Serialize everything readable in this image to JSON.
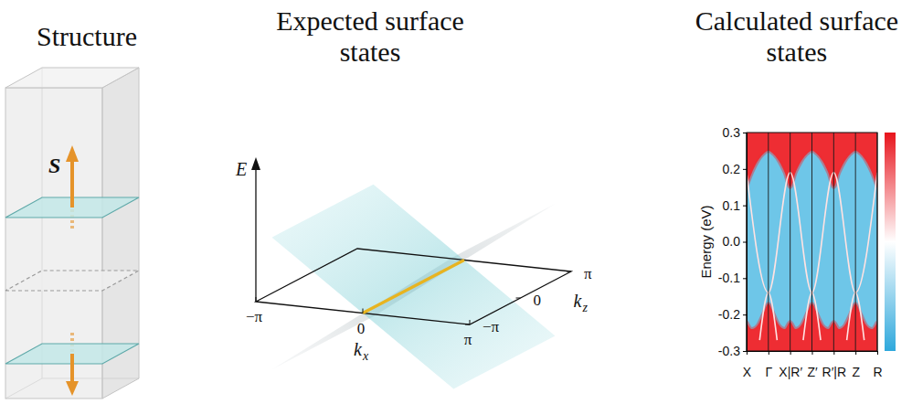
{
  "structure": {
    "title": "Structure",
    "spin_label": "S"
  },
  "expected": {
    "title": "Expected surface states",
    "energy_label": "E",
    "kx_label": "k",
    "kx_subscript": "x",
    "kz_label": "k",
    "kz_subscript": "z",
    "kx_ticks": [
      {
        "value": -1,
        "label": "−π"
      },
      0,
      {
        "value": 1,
        "label": "π"
      }
    ],
    "kz_ticks": [
      {
        "value": -1,
        "label": "−π"
      },
      0,
      {
        "value": 1,
        "label": "π"
      }
    ]
  },
  "chart_data": {
    "type": "line",
    "title": "Calculated surface states",
    "ylabel": "Energy (eV)",
    "xlim": [
      0,
      6
    ],
    "xticks": [
      {
        "value": 0,
        "label": "X"
      },
      {
        "value": 1,
        "label": "Γ"
      },
      {
        "value": 2,
        "label": "X|R′"
      },
      {
        "value": 3,
        "label": "Z′"
      },
      {
        "value": 4,
        "label": "R′|R"
      },
      {
        "value": 5,
        "label": "Z"
      },
      {
        "value": 6,
        "label": "R"
      }
    ],
    "ylim": [
      -0.3,
      0.3
    ],
    "yticks": [
      -0.3,
      -0.2,
      -0.1,
      {
        "value": 0,
        "label": "0.0"
      },
      0.1,
      0.2,
      0.3
    ],
    "grid": "x",
    "colorbar": {
      "colors": [
        "#e8141c",
        "#ffffff",
        "#2ea8dc"
      ]
    },
    "series": [
      {
        "type": "area",
        "color": "#ee2d33",
        "x": [
          0,
          0.25,
          0.5,
          0.75,
          1,
          1.25,
          1.5,
          1.75,
          2,
          2.25,
          2.5,
          2.75,
          3,
          3.25,
          3.5,
          3.75,
          4,
          4.25,
          4.5,
          4.75,
          5,
          5.25,
          5.5,
          5.75,
          6
        ],
        "low": [
          0.15,
          0.19,
          0.22,
          0.24,
          0.25,
          0.24,
          0.22,
          0.19,
          0.15,
          0.19,
          0.22,
          0.24,
          0.25,
          0.24,
          0.22,
          0.19,
          0.15,
          0.19,
          0.22,
          0.24,
          0.25,
          0.24,
          0.22,
          0.19,
          0.15
        ],
        "high": [
          0.3,
          0.3,
          0.3,
          0.3,
          0.3,
          0.3,
          0.3,
          0.3,
          0.3,
          0.3,
          0.3,
          0.3,
          0.3,
          0.3,
          0.3,
          0.3,
          0.3,
          0.3,
          0.3,
          0.3,
          0.3,
          0.3,
          0.3,
          0.3,
          0.3
        ]
      },
      {
        "type": "area",
        "color": "#ee2d33",
        "x": [
          0,
          0.25,
          0.5,
          0.75,
          1,
          1.25,
          1.5,
          1.75,
          2,
          2.25,
          2.5,
          2.75,
          3,
          3.25,
          3.5,
          3.75,
          4,
          4.25,
          4.5,
          4.75,
          5,
          5.25,
          5.5,
          5.75,
          6
        ],
        "low": [
          -0.3,
          -0.3,
          -0.3,
          -0.3,
          -0.3,
          -0.3,
          -0.3,
          -0.3,
          -0.3,
          -0.3,
          -0.3,
          -0.3,
          -0.3,
          -0.3,
          -0.3,
          -0.3,
          -0.3,
          -0.3,
          -0.3,
          -0.3,
          -0.3,
          -0.3,
          -0.3,
          -0.3,
          -0.3
        ],
        "high": [
          -0.22,
          -0.24,
          -0.23,
          -0.2,
          -0.17,
          -0.2,
          -0.23,
          -0.24,
          -0.22,
          -0.24,
          -0.23,
          -0.2,
          -0.17,
          -0.2,
          -0.23,
          -0.24,
          -0.22,
          -0.24,
          -0.23,
          -0.2,
          -0.17,
          -0.2,
          -0.23,
          -0.24,
          -0.22
        ]
      },
      {
        "type": "line",
        "color": "#ffe2e2",
        "x": [
          0,
          1,
          2,
          3,
          4,
          5,
          6
        ],
        "values": [
          0.19,
          -0.14,
          0.19,
          -0.14,
          0.19,
          -0.14,
          0.19
        ]
      },
      {
        "type": "line",
        "color": "#ffe2e2",
        "x": [
          0.6,
          1,
          1.4,
          null,
          2.6,
          3,
          3.4,
          null,
          4.6,
          5,
          5.4
        ],
        "values": [
          -0.27,
          -0.14,
          -0.27,
          null,
          -0.27,
          -0.14,
          -0.27,
          null,
          -0.27,
          -0.14,
          -0.27
        ]
      }
    ]
  }
}
